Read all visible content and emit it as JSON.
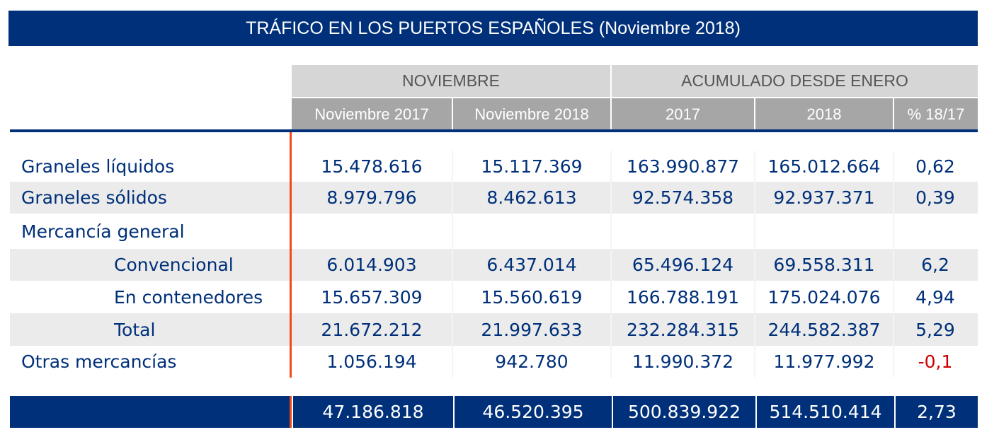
{
  "title": "TRÁFICO EN LOS PUERTOS ESPAÑOLES (Noviembre 2018)",
  "groups": {
    "noviembre": "NOVIEMBRE",
    "acumulado": "ACUMULADO DESDE ENERO"
  },
  "columns": [
    "Noviembre 2017",
    "Noviembre 2018",
    "2017",
    "2018",
    "% 18/17"
  ],
  "rows": [
    {
      "label": "Graneles líquidos",
      "values": [
        "15.478.616",
        "15.117.369",
        "163.990.877",
        "165.012.664",
        "0,62"
      ]
    },
    {
      "label": "Graneles sólidos",
      "values": [
        "8.979.796",
        "8.462.613",
        "92.574.358",
        "92.937.371",
        "0,39"
      ]
    },
    {
      "label": "Mercancía general",
      "values": [
        "",
        "",
        "",
        "",
        ""
      ]
    },
    {
      "label": "Convencional",
      "values": [
        "6.014.903",
        "6.437.014",
        "65.496.124",
        "69.558.311",
        "6,2"
      ]
    },
    {
      "label": "En contenedores",
      "values": [
        "15.657.309",
        "15.560.619",
        "166.788.191",
        "175.024.076",
        "4,94"
      ]
    },
    {
      "label": "Total",
      "values": [
        "21.672.212",
        "21.997.633",
        "232.284.315",
        "244.582.387",
        "5,29"
      ]
    },
    {
      "label": "Otras mercancías",
      "values": [
        "1.056.194",
        "942.780",
        "11.990.372",
        "11.977.992",
        "-0,1"
      ]
    }
  ],
  "totals": [
    "47.186.818",
    "46.520.395",
    "500.839.922",
    "514.510.414",
    "2,73"
  ]
}
